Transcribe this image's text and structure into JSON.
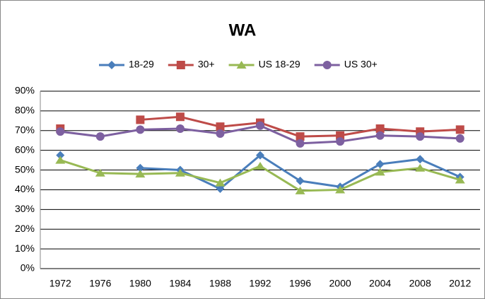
{
  "chart_data": {
    "type": "line",
    "title": "WA",
    "categories": [
      "1972",
      "1976",
      "1980",
      "1984",
      "1988",
      "1992",
      "1996",
      "2000",
      "2004",
      "2008",
      "2012"
    ],
    "series": [
      {
        "name": "18-29",
        "color": "#4a7ebb",
        "marker": "diamond",
        "values": [
          57.5,
          null,
          51,
          50,
          40.5,
          57.5,
          44.5,
          41.5,
          53,
          55.5,
          46.5
        ]
      },
      {
        "name": "30+",
        "color": "#be4b48",
        "marker": "square",
        "values": [
          71,
          null,
          75.5,
          77,
          72,
          74,
          67,
          67.5,
          71,
          69.5,
          70.5
        ]
      },
      {
        "name": "US 18-29",
        "color": "#98b954",
        "marker": "triangle",
        "values": [
          55,
          48.5,
          48,
          48.5,
          43.5,
          52,
          39.5,
          40,
          49,
          51,
          45
        ]
      },
      {
        "name": "US 30+",
        "color": "#7d60a0",
        "marker": "circle",
        "values": [
          69.5,
          67,
          70.5,
          71,
          68.5,
          72.5,
          63.5,
          64.5,
          67.5,
          67,
          66
        ]
      }
    ],
    "ylim": [
      0,
      90
    ],
    "yticks": [
      {
        "value": 0,
        "label": "0%"
      },
      {
        "value": 10,
        "label": "10%"
      },
      {
        "value": 20,
        "label": "20%"
      },
      {
        "value": 30,
        "label": "30%"
      },
      {
        "value": 40,
        "label": "40%"
      },
      {
        "value": 50,
        "label": "50%"
      },
      {
        "value": 60,
        "label": "60%"
      },
      {
        "value": 70,
        "label": "70%"
      },
      {
        "value": 80,
        "label": "80%"
      },
      {
        "value": 90,
        "label": "90%"
      }
    ],
    "grid": true,
    "legend": "top"
  }
}
